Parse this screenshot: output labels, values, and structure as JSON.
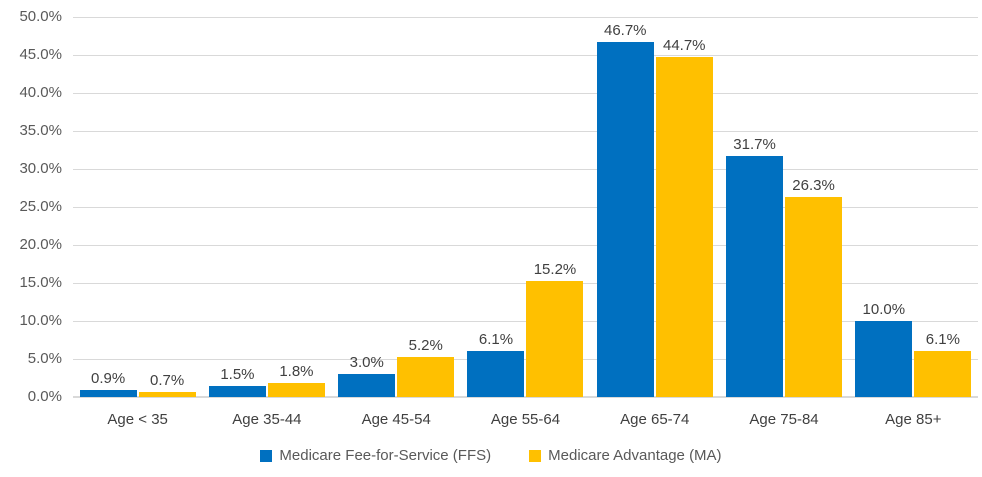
{
  "chart_data": {
    "type": "bar",
    "title": "",
    "xlabel": "",
    "ylabel": "",
    "categories": [
      "Age < 35",
      "Age 35-44",
      "Age 45-54",
      "Age 55-64",
      "Age 65-74",
      "Age 75-84",
      "Age 85+"
    ],
    "series": [
      {
        "name": "Medicare Fee-for-Service (FFS)",
        "color": "#0070C0",
        "values": [
          0.9,
          1.5,
          3.0,
          6.1,
          46.7,
          31.7,
          10.0
        ],
        "labels": [
          "0.9%",
          "1.5%",
          "3.0%",
          "6.1%",
          "46.7%",
          "31.7%",
          "10.0%"
        ]
      },
      {
        "name": "Medicare Advantage (MA)",
        "color": "#FFC000",
        "values": [
          0.7,
          1.8,
          5.2,
          15.2,
          44.7,
          26.3,
          6.1
        ],
        "labels": [
          "0.7%",
          "1.8%",
          "5.2%",
          "15.2%",
          "44.7%",
          "26.3%",
          "6.1%"
        ]
      }
    ],
    "ylim": [
      0,
      50
    ],
    "ytick_step": 5,
    "yticks": [
      "0.0%",
      "5.0%",
      "10.0%",
      "15.0%",
      "20.0%",
      "25.0%",
      "30.0%",
      "35.0%",
      "40.0%",
      "45.0%",
      "50.0%"
    ],
    "grid": true,
    "legend_position": "bottom"
  },
  "colors": {
    "background": "#FFFFFF",
    "gridline": "#D9D9D9",
    "axis_line": "#D9D9D9",
    "ytick_label": "#595959",
    "category_label": "#404040",
    "data_label": "#404040",
    "legend_label": "#595959"
  }
}
